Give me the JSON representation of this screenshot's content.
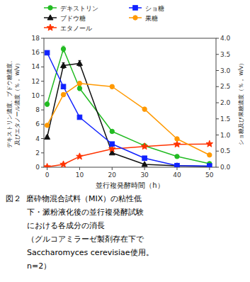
{
  "chart_data": {
    "type": "line",
    "xlabel": "並行複発酵時間（h）",
    "ylabel": "デキストリン濃度、ブドウ糖濃度、\n及びエタノール濃度（％， w/v）",
    "y2label": "ショ糖及び果糖濃度（％， w/v）",
    "x": [
      0,
      5,
      10,
      20,
      30,
      40,
      50
    ],
    "series": [
      {
        "name": "デキストリン",
        "color": "#22bb22",
        "marker": "circle",
        "axis": "y",
        "values": [
          8.8,
          16.5,
          11.0,
          5.0,
          3.0,
          1.5,
          0.5
        ],
        "errors": [
          0.3,
          0.4,
          0.3,
          0.2,
          0.15,
          0.1,
          0.05
        ]
      },
      {
        "name": "ブドウ糖",
        "color": "#111111",
        "marker": "triangle",
        "axis": "y",
        "values": [
          4.2,
          14.2,
          14.5,
          2.0,
          0.4,
          0.2,
          0.1
        ],
        "errors": [
          0.2,
          0.4,
          0.4,
          0.15,
          0.05,
          0.05,
          0.03
        ]
      },
      {
        "name": "エタノール",
        "color": "#ff3300",
        "marker": "star",
        "axis": "y",
        "values": [
          0.05,
          0.4,
          1.5,
          2.55,
          2.9,
          3.2,
          3.25
        ],
        "errors": [
          0.03,
          0.05,
          0.08,
          0.07,
          0.07,
          0.07,
          0.07
        ]
      },
      {
        "name": "ショ糖",
        "color": "#1122ff",
        "marker": "square",
        "axis": "y2",
        "values": [
          3.55,
          2.5,
          1.55,
          0.72,
          0.28,
          0.05,
          0.04
        ],
        "errors": [
          0.06,
          0.06,
          0.04,
          0.04,
          0.03,
          0.01,
          0.01
        ]
      },
      {
        "name": "果糖",
        "color": "#ff9900",
        "marker": "circle",
        "axis": "y2",
        "values": [
          1.3,
          2.25,
          2.6,
          2.5,
          1.8,
          0.88,
          0.38
        ],
        "errors": [
          0.05,
          0.06,
          0.06,
          0.06,
          0.06,
          0.04,
          0.02
        ]
      }
    ],
    "xlim": [
      -1,
      52
    ],
    "xticks": [
      0,
      10,
      20,
      30,
      40,
      50
    ],
    "ylim": [
      0,
      18
    ],
    "yticks": [
      0,
      2,
      4,
      6,
      8,
      10,
      12,
      14,
      16,
      18
    ],
    "y2lim": [
      0,
      4.0
    ],
    "y2ticks": [
      {
        "value": 0,
        "label": "0.0"
      },
      0.5,
      {
        "value": 1,
        "label": "1.0"
      },
      1.5,
      {
        "value": 2,
        "label": "2.0"
      },
      2.5,
      {
        "value": 3,
        "label": "3.0"
      },
      3.5,
      {
        "value": 4,
        "label": "4.0"
      }
    ],
    "grid": false,
    "legend": "top",
    "annotations": [
      "図２  磨砕物混合試料（MIX）の粘性低",
      "下・澱粉液化後の並行複発酵試験",
      "における各成分の消長",
      "（グルコアミラーゼ製剤存在下で",
      "Saccharomyces cerevisiae使用。",
      "n=2）"
    ]
  }
}
